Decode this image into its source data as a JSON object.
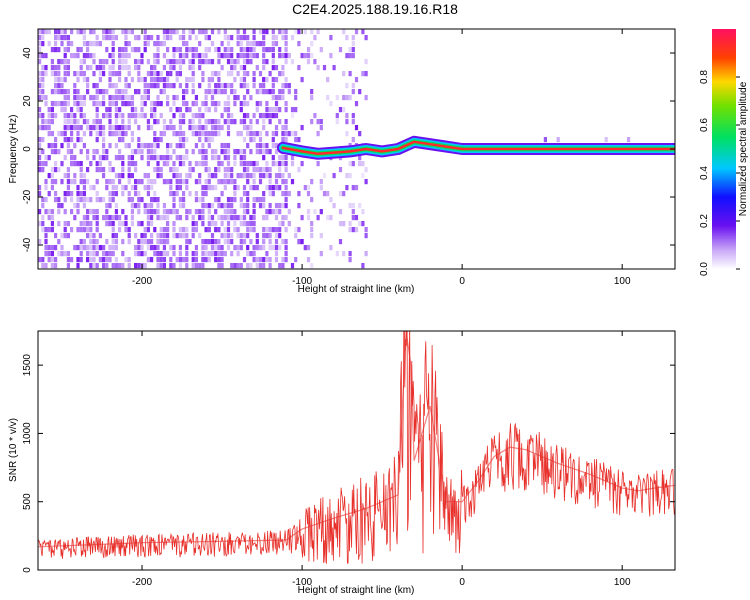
{
  "title": "C2E4.2025.188.19.16.R18",
  "chart_data": [
    {
      "type": "heatmap",
      "title": "C2E4.2025.188.19.16.R18",
      "xlabel": "Height of straight line (km)",
      "ylabel": "Frequency (Hz)",
      "xlim": [
        -265,
        133
      ],
      "ylim": [
        -50,
        50
      ],
      "xticks": [
        -200,
        -100,
        0,
        100
      ],
      "yticks": [
        -40,
        -20,
        0,
        20,
        40
      ],
      "colorbar": {
        "label": "Normalized spectral amplitude",
        "range": [
          0,
          1
        ],
        "ticks": [
          "0.0",
          "0.2",
          "0.4",
          "0.6",
          "0.8"
        ]
      },
      "noise_region": {
        "x_from": -265,
        "x_to": -60
      },
      "signal_track": {
        "x": [
          -112,
          -100,
          -90,
          -80,
          -70,
          -60,
          -50,
          -40,
          -30,
          -20,
          -10,
          0,
          20,
          60,
          100,
          133
        ],
        "y": [
          0.5,
          -1,
          -2,
          -1.5,
          -1,
          0,
          -1,
          0,
          3,
          2,
          1,
          0,
          0,
          0,
          0,
          0
        ]
      },
      "grid": false
    },
    {
      "type": "line",
      "xlabel": "Height of straight line (km)",
      "ylabel": "SNR (10 * v/v)",
      "xlim": [
        -265,
        133
      ],
      "ylim": [
        0,
        1750
      ],
      "xticks": [
        -200,
        -100,
        0,
        100
      ],
      "yticks": [
        0,
        500,
        1000,
        1500
      ],
      "series": [
        {
          "color": "#e8302b",
          "x": [
            -265,
            -200,
            -150,
            -110,
            -100,
            -80,
            -60,
            -50,
            -40,
            -35,
            -32,
            -30,
            -20,
            -10,
            0,
            10,
            20,
            30,
            40,
            60,
            80,
            100,
            110,
            120,
            133
          ],
          "y": [
            170,
            200,
            210,
            220,
            300,
            380,
            450,
            500,
            550,
            1750,
            1500,
            800,
            1200,
            500,
            500,
            650,
            830,
            900,
            880,
            780,
            700,
            600,
            580,
            600,
            620
          ]
        }
      ],
      "grid": false
    }
  ]
}
